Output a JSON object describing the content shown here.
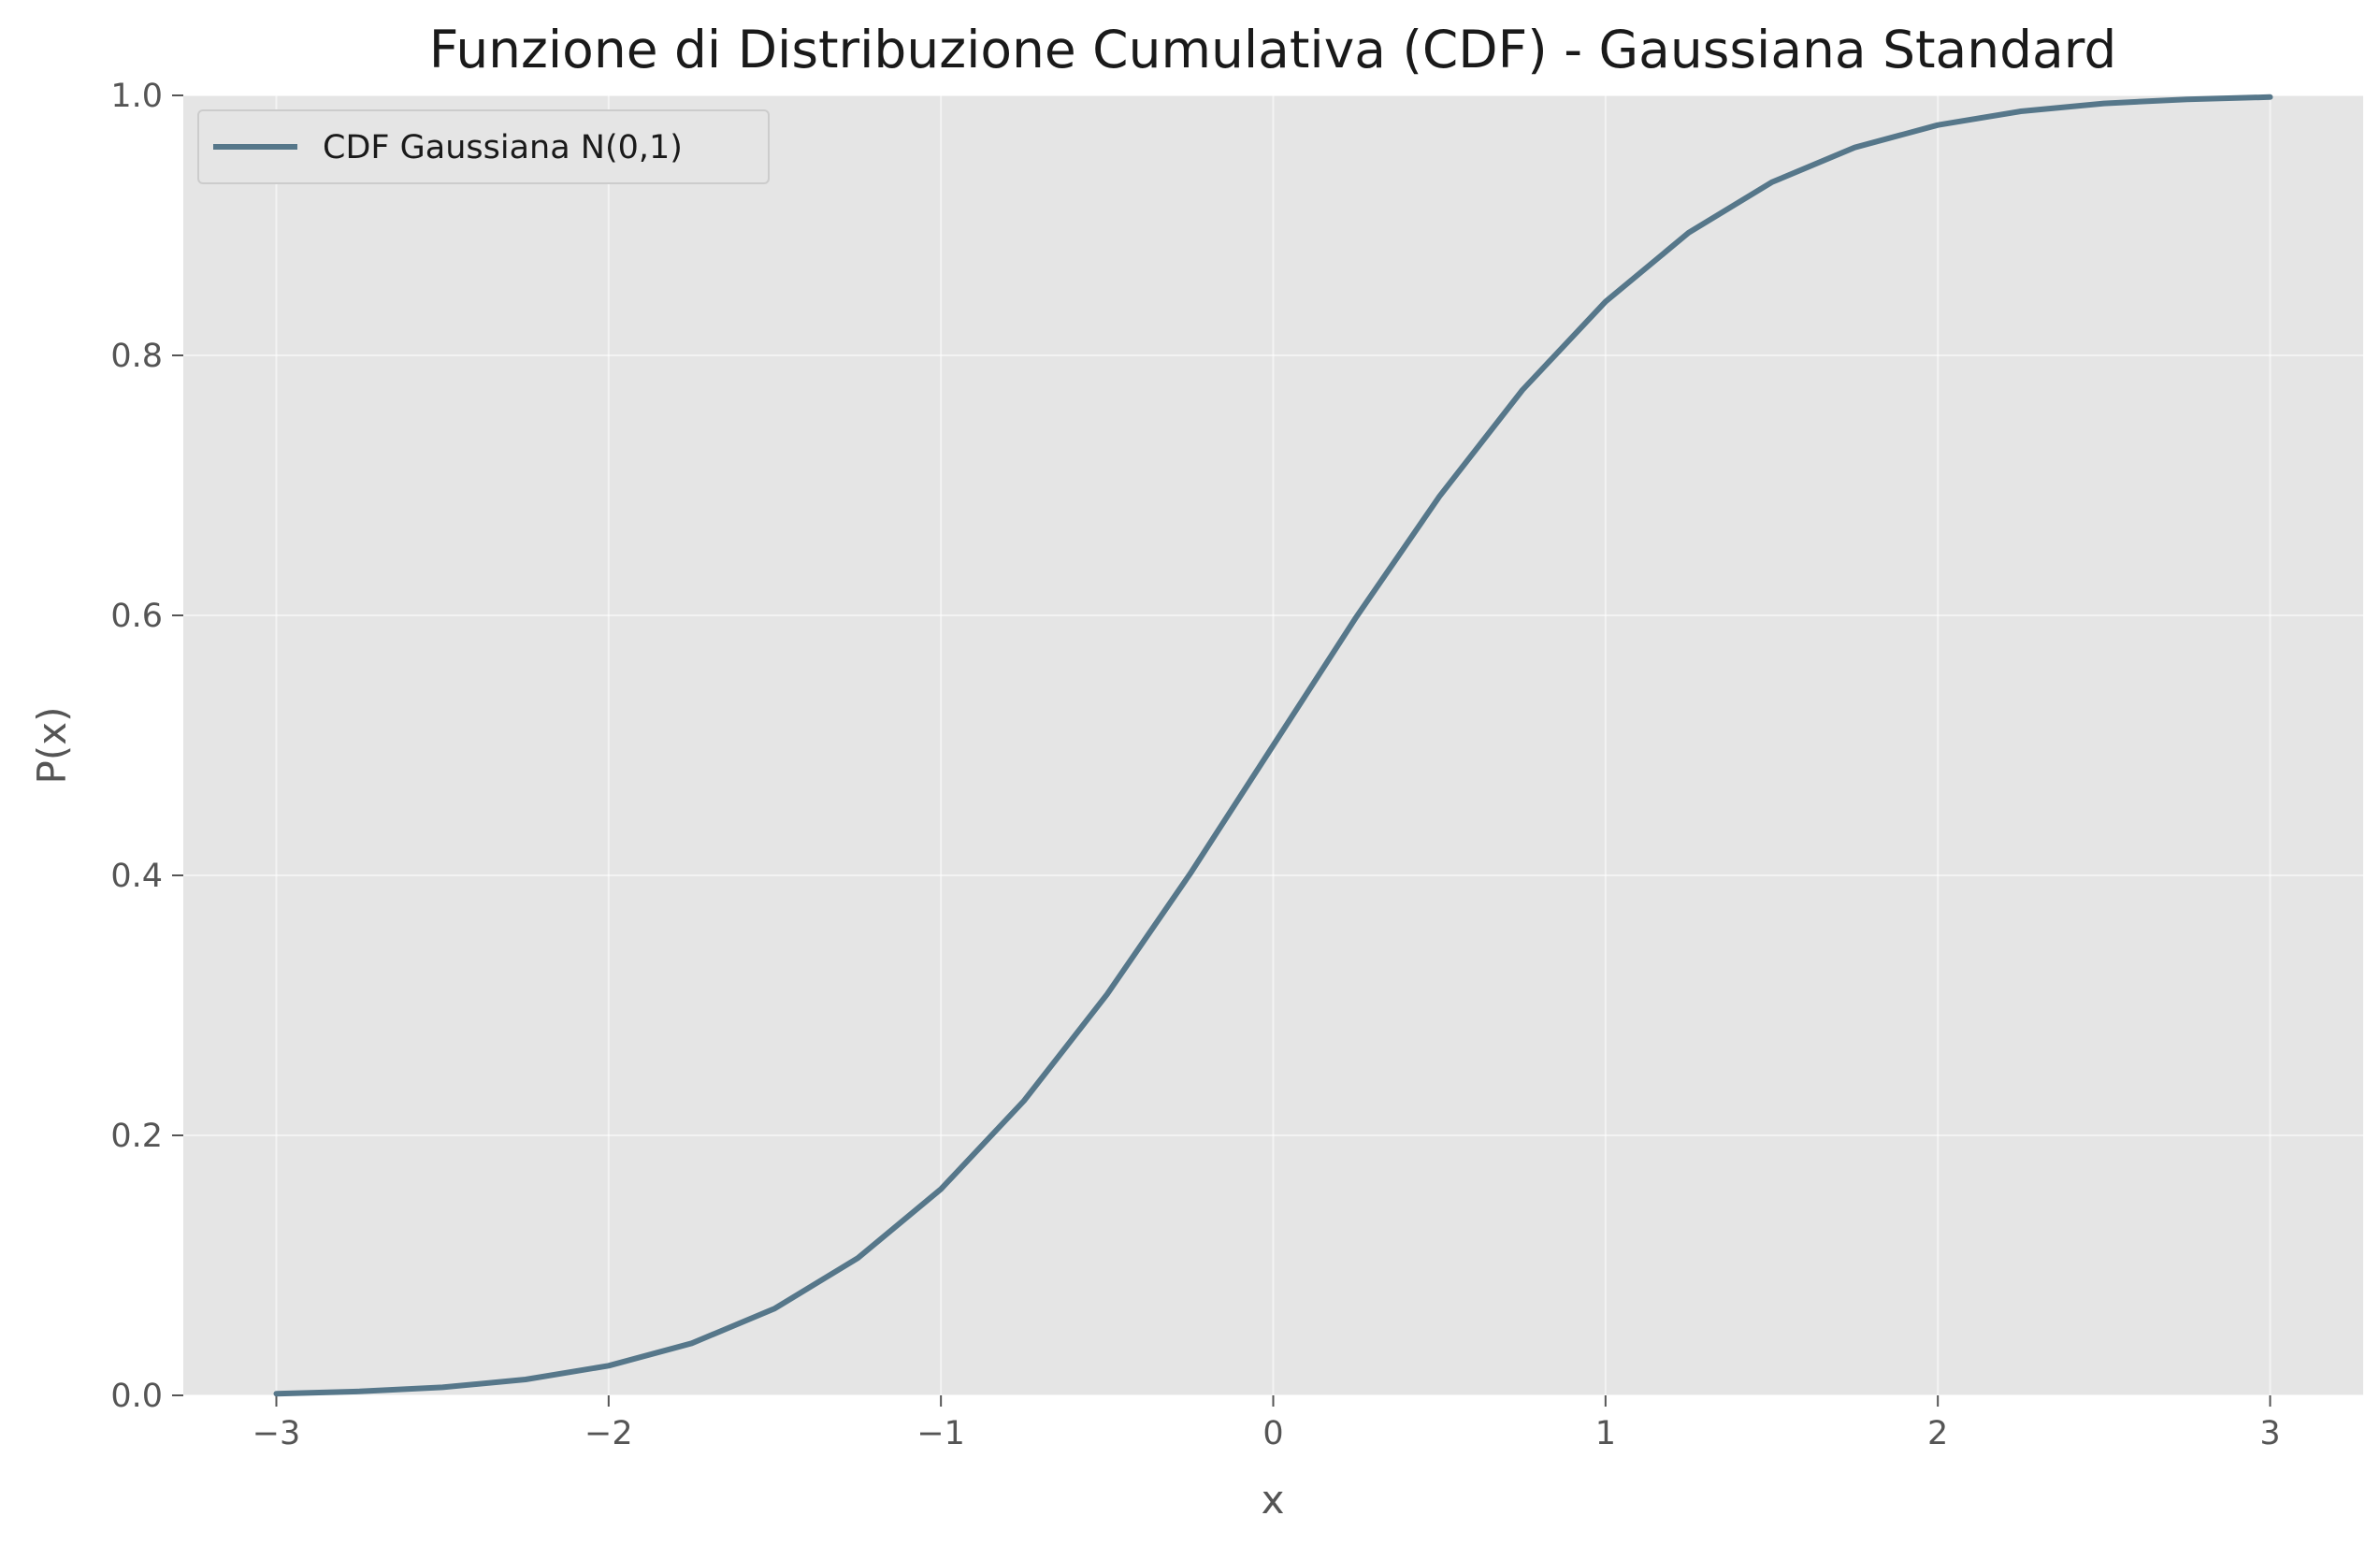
{
  "chart_data": {
    "type": "line",
    "title": "Funzione di Distribuzione Cumulativa (CDF) - Gaussiana Standard",
    "xlabel": "x",
    "ylabel": "P(x)",
    "xlim": [
      -3.28,
      3.28
    ],
    "ylim": [
      0,
      1
    ],
    "x_ticks": [
      -3,
      -2,
      -1,
      0,
      1,
      2,
      3
    ],
    "x_tick_labels": [
      "−3",
      "−2",
      "−1",
      "0",
      "1",
      "2",
      "3"
    ],
    "y_ticks": [
      0,
      0.2,
      0.4,
      0.6,
      0.8,
      1.0
    ],
    "y_tick_labels": [
      "0.0",
      "0.2",
      "0.4",
      "0.6",
      "0.8",
      "1.0"
    ],
    "grid": true,
    "legend_position": "top-left",
    "background_color": "#e5e5e5",
    "series": [
      {
        "name": "CDF Gaussiana N(0,1)",
        "color": "#56778a",
        "x": [
          -3.0,
          -2.75,
          -2.5,
          -2.25,
          -2.0,
          -1.75,
          -1.5,
          -1.25,
          -1.0,
          -0.75,
          -0.5,
          -0.25,
          0.0,
          0.25,
          0.5,
          0.75,
          1.0,
          1.25,
          1.5,
          1.75,
          2.0,
          2.25,
          2.5,
          2.75,
          3.0
        ],
        "y": [
          0.0013,
          0.003,
          0.0062,
          0.0122,
          0.0228,
          0.0401,
          0.0668,
          0.1056,
          0.1587,
          0.2266,
          0.3085,
          0.4013,
          0.5,
          0.5987,
          0.6915,
          0.7734,
          0.8413,
          0.8944,
          0.9332,
          0.9599,
          0.9772,
          0.9878,
          0.9938,
          0.997,
          0.9987
        ]
      }
    ]
  }
}
